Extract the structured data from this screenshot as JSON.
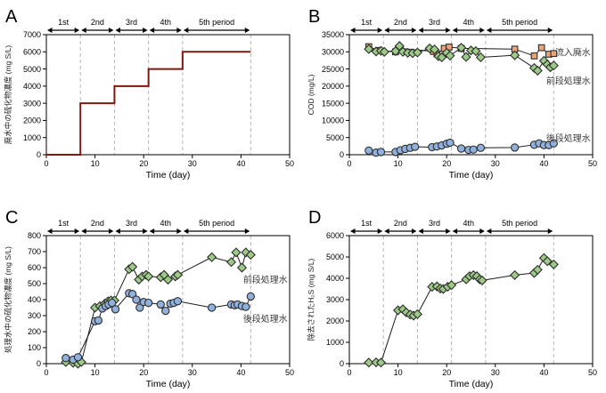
{
  "colors": {
    "influent_fill": "#f2a374",
    "treated1_fill": "#9dcb87",
    "treated2_fill": "#92b0dc",
    "marker_stroke": "#2e2e2e",
    "step_line": "#7c1a11",
    "series_line": "#1a1a1a",
    "dashed_line": "#b5b5b5",
    "axis": "#000000",
    "annotation_text": "#3c3c3c"
  },
  "periods": [
    {
      "label": "1st",
      "start": 0,
      "end": 7
    },
    {
      "label": "2nd",
      "start": 7,
      "end": 14
    },
    {
      "label": "3rd",
      "start": 14,
      "end": 21
    },
    {
      "label": "4th",
      "start": 21,
      "end": 28
    },
    {
      "label": "5th period",
      "start": 28,
      "end": 42
    }
  ],
  "chart_data": [
    {
      "panel": "A",
      "type": "line",
      "title": "",
      "xlabel": "Time (day)",
      "ylabel": "廃水中の硫化物濃度 (mg S/L)",
      "xlim": [
        0,
        50
      ],
      "xticks": [
        0,
        10,
        20,
        30,
        40,
        50
      ],
      "ylim": [
        0,
        7000
      ],
      "yticks": [
        0,
        1000,
        2000,
        3000,
        4000,
        5000,
        6000,
        7000
      ],
      "series": [
        {
          "key": "wastewater-sulfide-step",
          "name": "廃水中の硫化物濃度",
          "marker": "none",
          "line_color": "#7c1a11",
          "line_width": 2,
          "x": [
            0,
            7,
            7,
            14,
            14,
            21,
            21,
            28,
            28,
            42
          ],
          "y": [
            0,
            0,
            3000,
            3000,
            4000,
            4000,
            5000,
            5000,
            6000,
            6000
          ]
        }
      ],
      "annotations": []
    },
    {
      "panel": "B",
      "type": "scatter",
      "title": "",
      "xlabel": "Time (day)",
      "ylabel": "COD (mg/L)",
      "xlim": [
        0,
        50
      ],
      "xticks": [
        0,
        10,
        20,
        30,
        40,
        50
      ],
      "ylim": [
        0,
        35000
      ],
      "yticks": [
        0,
        5000,
        10000,
        15000,
        20000,
        25000,
        30000,
        35000
      ],
      "series": [
        {
          "key": "influent-wastewater",
          "name": "流入廃水",
          "marker": "square",
          "fill": "#f2a374",
          "x": [
            4,
            6,
            9.5,
            10.5,
            17.3,
            18,
            19.5,
            20.5,
            23,
            34,
            38,
            39.5,
            41,
            42
          ],
          "y": [
            31500,
            30400,
            30000,
            31000,
            30100,
            29400,
            31000,
            31400,
            31000,
            30800,
            28800,
            31200,
            29300,
            29500
          ]
        },
        {
          "key": "first-stage-treated-water",
          "name": "前段処理水",
          "marker": "diamond",
          "fill": "#9dcb87",
          "x": [
            4,
            5.5,
            6.5,
            7.2,
            9.5,
            10.3,
            11,
            12,
            13,
            14,
            16.5,
            17.5,
            18.3,
            19,
            20,
            20.7,
            23,
            24,
            25,
            26,
            27,
            34,
            38,
            38.7,
            40,
            40.7,
            41.3,
            42
          ],
          "y": [
            30800,
            30100,
            30300,
            30000,
            30200,
            31700,
            30000,
            29700,
            29600,
            29800,
            31000,
            30700,
            28700,
            28400,
            29700,
            28900,
            31200,
            28500,
            30400,
            30200,
            28400,
            29000,
            25300,
            24500,
            27400,
            26300,
            25500,
            26000
          ]
        },
        {
          "key": "second-stage-treated-water",
          "name": "後段処理水",
          "marker": "circle",
          "fill": "#92b0dc",
          "x": [
            4,
            5.5,
            6.5,
            9.5,
            10.5,
            11.5,
            12.5,
            13.5,
            17,
            18,
            19,
            20,
            20.7,
            23,
            24.5,
            25.5,
            27,
            34,
            38,
            39,
            40,
            41,
            42
          ],
          "y": [
            1200,
            600,
            800,
            800,
            1300,
            1700,
            2000,
            2300,
            2200,
            2400,
            2700,
            3200,
            3500,
            1800,
            1400,
            1500,
            2000,
            2100,
            2900,
            3300,
            2800,
            2800,
            3300
          ]
        }
      ],
      "annotations": [
        {
          "text": "流入廃水",
          "x": 49.6,
          "y": 29800,
          "anchor": "end"
        },
        {
          "text": "前段処理水",
          "x": 49.6,
          "y": 21500,
          "anchor": "end"
        },
        {
          "text": "後段処理水",
          "x": 49.6,
          "y": 4800,
          "anchor": "end"
        }
      ]
    },
    {
      "panel": "C",
      "type": "scatter",
      "title": "",
      "xlabel": "Time (day)",
      "ylabel": "処理水中の硫化物濃度 (mg S/L)",
      "xlim": [
        0,
        50
      ],
      "xticks": [
        0,
        10,
        20,
        30,
        40,
        50
      ],
      "ylim": [
        0,
        800
      ],
      "yticks": [
        0,
        100,
        200,
        300,
        400,
        500,
        600,
        700,
        800
      ],
      "series": [
        {
          "key": "first-stage-treated-water",
          "name": "前段処理水",
          "marker": "diamond",
          "fill": "#9dcb87",
          "x": [
            4,
            5.5,
            6.5,
            7.2,
            10,
            11,
            12,
            12.7,
            13.3,
            14,
            17,
            17.7,
            19,
            19.7,
            20.5,
            21,
            23.5,
            24.2,
            25,
            26.5,
            27,
            34,
            38,
            39,
            40.2,
            41,
            42
          ],
          "y": [
            10,
            5,
            0,
            10,
            350,
            360,
            375,
            390,
            395,
            395,
            590,
            605,
            525,
            545,
            555,
            545,
            540,
            555,
            525,
            545,
            555,
            665,
            635,
            695,
            600,
            695,
            680
          ]
        },
        {
          "key": "second-stage-treated-water",
          "name": "後段処理水",
          "marker": "circle",
          "fill": "#92b0dc",
          "x": [
            4,
            5.5,
            6.5,
            10,
            10.7,
            11.5,
            12.2,
            12.8,
            13.5,
            14.2,
            17,
            17.7,
            18.5,
            19.2,
            20,
            21,
            23.5,
            24.5,
            25.5,
            26.2,
            27,
            34,
            38,
            38.7,
            39.3,
            40.2,
            41,
            42
          ],
          "y": [
            35,
            25,
            40,
            265,
            270,
            345,
            360,
            370,
            380,
            340,
            440,
            435,
            400,
            350,
            385,
            380,
            370,
            330,
            375,
            380,
            390,
            350,
            370,
            365,
            370,
            360,
            355,
            420
          ]
        }
      ],
      "annotations": [
        {
          "text": "前段処理水",
          "x": 49.6,
          "y": 525,
          "anchor": "end"
        },
        {
          "text": "後段処理水",
          "x": 49.6,
          "y": 280,
          "anchor": "end"
        }
      ]
    },
    {
      "panel": "D",
      "type": "scatter",
      "title": "",
      "xlabel": "Time (day)",
      "ylabel": "除去されたH₂S (mg S/L)",
      "xlim": [
        0,
        50
      ],
      "xticks": [
        0,
        10,
        20,
        30,
        40,
        50
      ],
      "ylim": [
        0,
        6000
      ],
      "yticks": [
        0,
        1000,
        2000,
        3000,
        4000,
        5000,
        6000
      ],
      "series": [
        {
          "key": "removed-h2s",
          "name": "除去されたH₂S",
          "marker": "diamond",
          "fill": "#9dcb87",
          "x": [
            4,
            5.5,
            6.5,
            10,
            11,
            11.7,
            12.5,
            13.2,
            14,
            17,
            18,
            18.7,
            19.3,
            20.2,
            21,
            24,
            24.7,
            25.5,
            26.2,
            26.8,
            27.3,
            34,
            38,
            38.7,
            40,
            40.7,
            42
          ],
          "y": [
            50,
            60,
            50,
            2500,
            2550,
            2400,
            2300,
            2250,
            2320,
            3600,
            3620,
            3520,
            3500,
            3600,
            3680,
            3950,
            4100,
            4150,
            4100,
            3950,
            3900,
            4150,
            4250,
            4400,
            4950,
            4800,
            4650
          ]
        }
      ],
      "annotations": []
    }
  ]
}
